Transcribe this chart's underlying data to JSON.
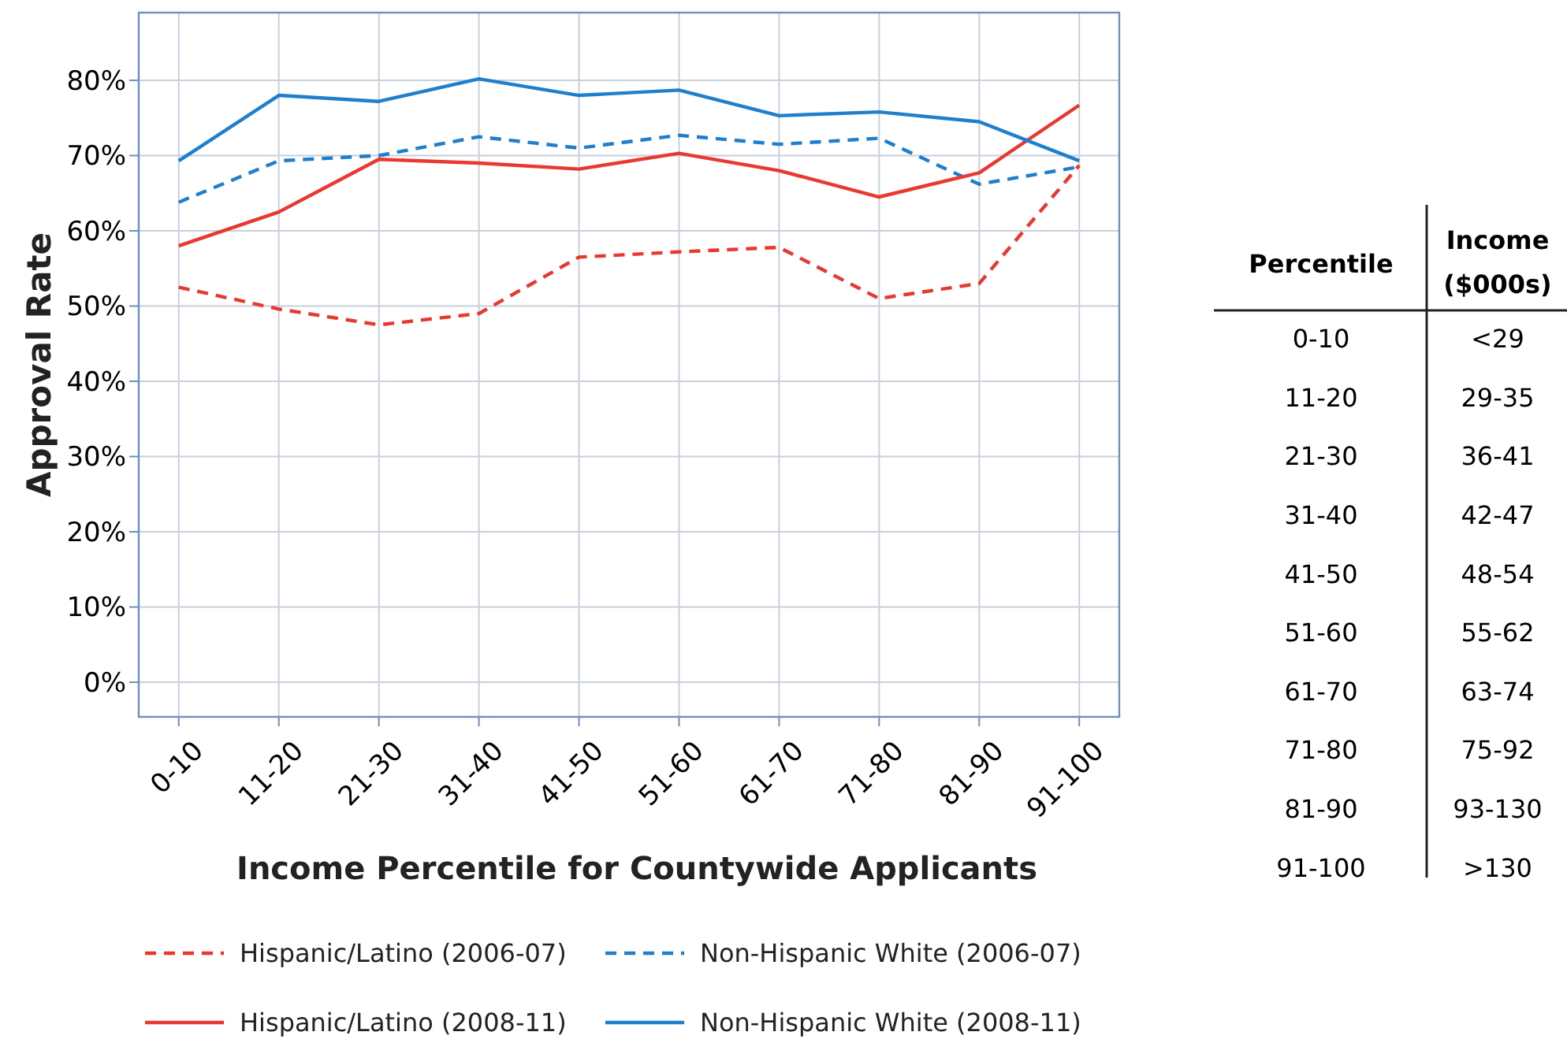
{
  "chart_data": [
    {
      "type": "line",
      "xlabel": "Income Percentile for Countywide Applicants",
      "ylabel": "Approval Rate",
      "categories": [
        "0-10",
        "11-20",
        "21-30",
        "31-40",
        "41-50",
        "51-60",
        "61-70",
        "71-80",
        "81-90",
        "91-100"
      ],
      "series": [
        {
          "name": "Hispanic/Latino (2006-07)",
          "color": "#e8382f",
          "line_style": "dashed",
          "values": [
            52.5,
            49.6,
            47.5,
            49,
            56.5,
            57.2,
            57.8,
            51,
            53,
            68.7
          ]
        },
        {
          "name": "Non-Hispanic White (2006-07)",
          "color": "#1f7fcc",
          "line_style": "dashed",
          "values": [
            63.8,
            69.3,
            70,
            72.5,
            71,
            72.7,
            71.5,
            72.3,
            66.2,
            68.5
          ]
        },
        {
          "name": "Hispanic/Latino (2008-11)",
          "color": "#e8382f",
          "line_style": "solid",
          "values": [
            58,
            62.5,
            69.5,
            69,
            68.2,
            70.3,
            68,
            64.5,
            67.7,
            76.7
          ]
        },
        {
          "name": "Non-Hispanic White (2008-11)",
          "color": "#1f7fcc",
          "line_style": "solid",
          "values": [
            69.3,
            78,
            77.2,
            80.2,
            78,
            78.7,
            75.3,
            75.8,
            74.5,
            69.3
          ]
        }
      ],
      "ylim": [
        -4.6,
        89
      ],
      "yticks": [
        {
          "value": 0,
          "label": "0%"
        },
        {
          "value": 10,
          "label": "10%"
        },
        {
          "value": 20,
          "label": "20%"
        },
        {
          "value": 30,
          "label": "30%"
        },
        {
          "value": 40,
          "label": "40%"
        },
        {
          "value": 50,
          "label": "50%"
        },
        {
          "value": 60,
          "label": "60%"
        },
        {
          "value": 70,
          "label": "70%"
        },
        {
          "value": 80,
          "label": "80%"
        }
      ],
      "grid": true,
      "legend": "bottom",
      "marker": "none"
    },
    {
      "type": "other",
      "xlabel": "Percentile",
      "ylabel": "Income ($000s)",
      "categories": [
        "0-10",
        "11-20",
        "21-30",
        "31-40",
        "41-50",
        "51-60",
        "61-70",
        "71-80",
        "81-90",
        "91-100"
      ],
      "value_labels": [
        "<29",
        "29-35",
        "36-41",
        "42-47",
        "48-54",
        "55-62",
        "63-74",
        "75-92",
        "93-130",
        ">130"
      ]
    }
  ]
}
